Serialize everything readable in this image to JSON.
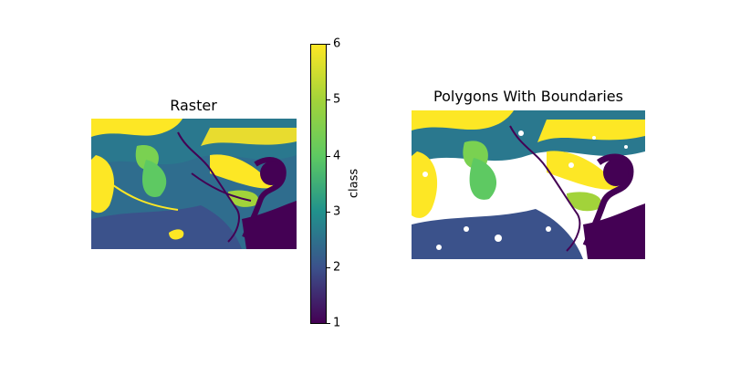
{
  "left_panel": {
    "title": "Raster"
  },
  "right_panel": {
    "title": "Polygons With Boundaries"
  },
  "colorbar": {
    "label": "class",
    "ticks": [
      "6",
      "5",
      "4",
      "3",
      "2",
      "1"
    ],
    "min": 1,
    "max": 6,
    "colors": [
      "#440154",
      "#3b528b",
      "#21918c",
      "#5ec962",
      "#a2d33a",
      "#fde725"
    ]
  }
}
